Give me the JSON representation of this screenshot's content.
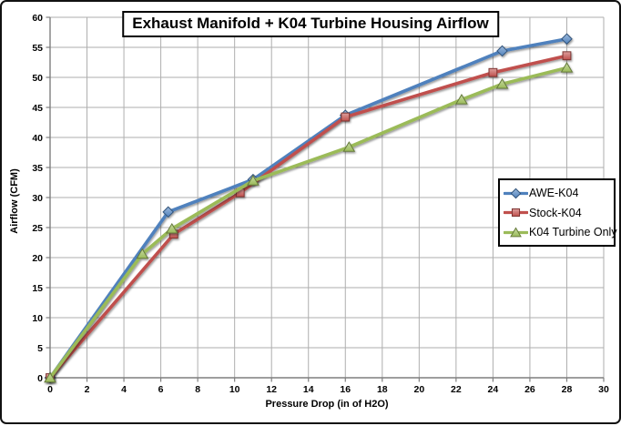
{
  "figure": {
    "background": "#ffffff",
    "border_color": "#111111"
  },
  "chart_data": {
    "type": "line",
    "title": "Exhaust Manifold + K04 Turbine Housing Airflow",
    "xlabel": "Pressure Drop (in of H2O)",
    "ylabel": "Airflow (CFM)",
    "xlim": [
      0,
      30
    ],
    "ylim": [
      0,
      60
    ],
    "x_tick_step": 2,
    "y_tick_step": 5,
    "grid": true,
    "legend_position": "middle-right",
    "gridline_color": "#aeaeae",
    "axis_color": "#7f7f7f",
    "tick_label_color": "#000000",
    "series": [
      {
        "name": "AWE-K04",
        "color": "#4F81BD",
        "marker": "diamond",
        "points": [
          [
            0,
            0
          ],
          [
            6.4,
            27.6
          ],
          [
            11,
            33.0
          ],
          [
            16,
            43.7
          ],
          [
            24.5,
            54.4
          ],
          [
            28,
            56.4
          ]
        ]
      },
      {
        "name": "Stock-K04",
        "color": "#C0504D",
        "marker": "square",
        "points": [
          [
            0,
            0
          ],
          [
            6.7,
            23.9
          ],
          [
            10.3,
            30.8
          ],
          [
            16,
            43.4
          ],
          [
            24,
            50.8
          ],
          [
            28,
            53.6
          ]
        ]
      },
      {
        "name": "K04 Turbine Only",
        "color": "#9BBB59",
        "marker": "triangle",
        "points": [
          [
            0,
            0
          ],
          [
            5,
            20.6
          ],
          [
            6.6,
            24.8
          ],
          [
            11,
            32.8
          ],
          [
            16.2,
            38.4
          ],
          [
            22.3,
            46.3
          ],
          [
            24.5,
            48.9
          ],
          [
            28,
            51.6
          ]
        ]
      }
    ]
  }
}
